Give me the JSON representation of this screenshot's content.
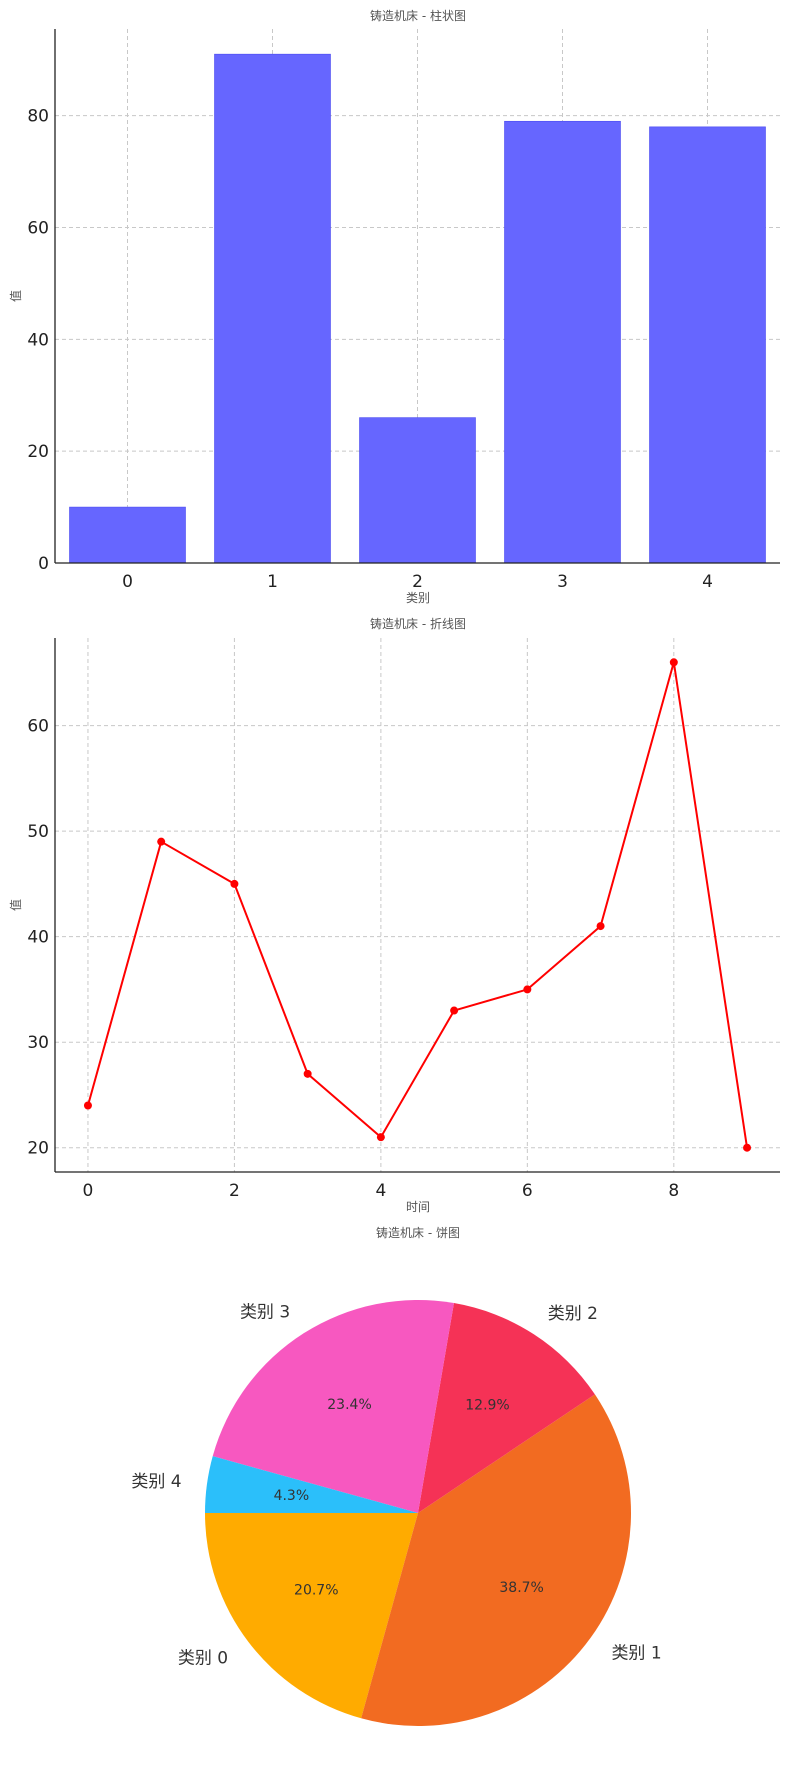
{
  "chart_data": [
    {
      "type": "bar",
      "title": "铸造机床 - 柱状图",
      "xlabel": "类别",
      "ylabel": "值",
      "categories": [
        "0",
        "1",
        "2",
        "3",
        "4"
      ],
      "values": [
        10,
        91,
        26,
        79,
        78
      ],
      "ylim": [
        0,
        95.5
      ],
      "yticks": [
        0,
        20,
        40,
        60,
        80
      ],
      "color": "#6666ff",
      "grid": true
    },
    {
      "type": "line",
      "title": "铸造机床 - 折线图",
      "xlabel": "时间",
      "ylabel": "值",
      "x": [
        0,
        1,
        2,
        3,
        4,
        5,
        6,
        7,
        8,
        9
      ],
      "values": [
        24,
        49,
        45,
        27,
        21,
        33,
        35,
        41,
        66,
        20
      ],
      "xlim": [
        -0.45,
        9.45
      ],
      "ylim": [
        17.7,
        68.3
      ],
      "xticks": [
        0,
        2,
        4,
        6,
        8
      ],
      "yticks": [
        20,
        30,
        40,
        50,
        60
      ],
      "color": "#ff0000",
      "grid": true
    },
    {
      "type": "pie",
      "title": "铸造机床 - 饼图",
      "labels": [
        "类别 0",
        "类别 1",
        "类别 2",
        "类别 3",
        "类别 4"
      ],
      "values": [
        20.7,
        38.7,
        12.9,
        23.4,
        4.3
      ],
      "percent_labels": [
        "20.7%",
        "38.7%",
        "12.9%",
        "23.4%",
        "4.3%"
      ],
      "colors": [
        "#ffab00",
        "#f26b21",
        "#f53256",
        "#f758c0",
        "#2bbffa"
      ]
    }
  ]
}
